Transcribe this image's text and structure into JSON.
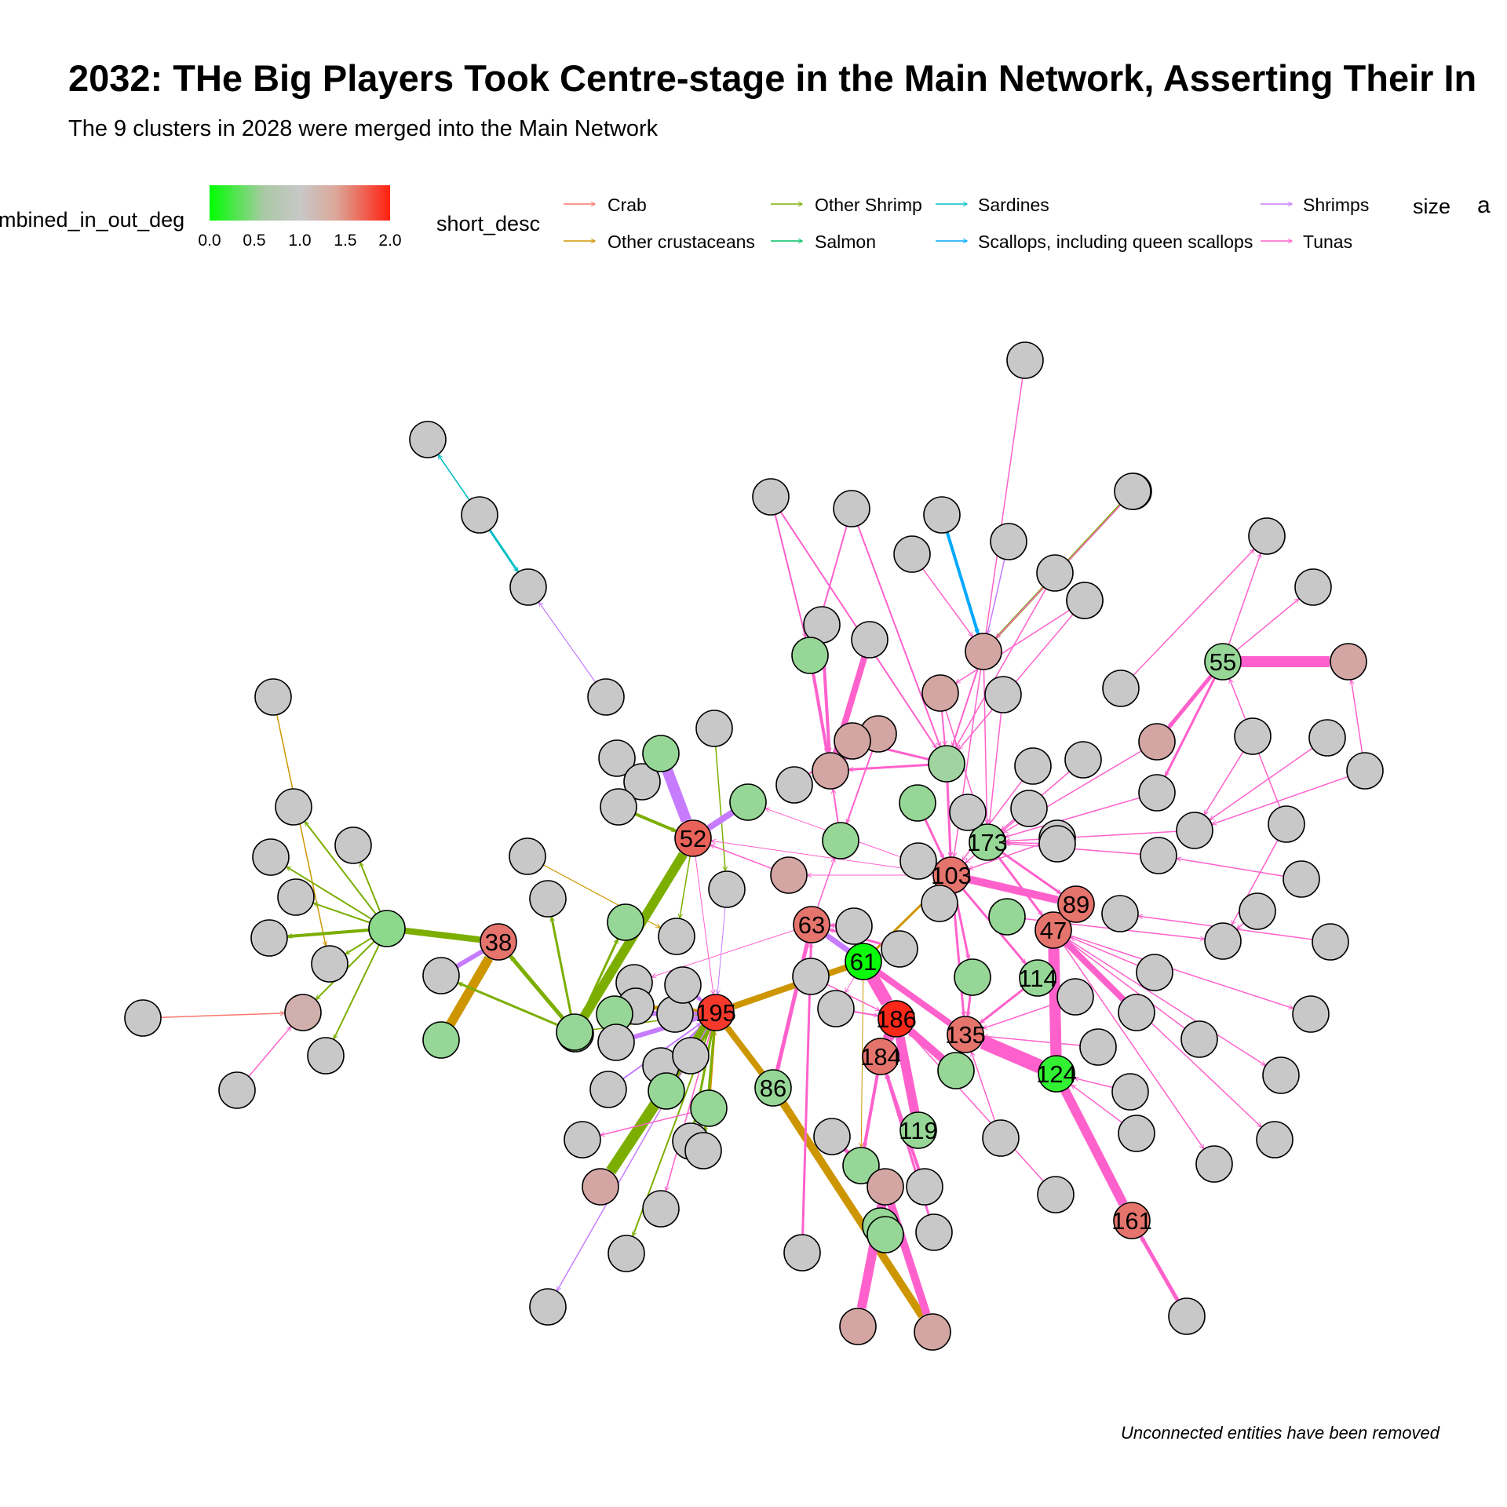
{
  "header": {
    "title": "2032: THe Big Players Took Centre-stage in the Main Network, Asserting Their In",
    "subtitle": "The 9 clusters in 2028 were merged into the Main Network"
  },
  "caption": "Unconnected entities have been removed",
  "legend": {
    "color_title": "mbined_in_out_deg",
    "color_ticks": [
      "0.0",
      "0.5",
      "1.0",
      "1.5",
      "2.0"
    ],
    "color_scale": {
      "low": "#00ff00",
      "mid": "#c8c8c8",
      "high": "#ff2010"
    },
    "edge_title": "short_desc",
    "edge_items": [
      {
        "label": "Crab",
        "color": "#F8766D"
      },
      {
        "label": "Other crustaceans",
        "color": "#CD9600"
      },
      {
        "label": "Other Shrimp",
        "color": "#7CAE00"
      },
      {
        "label": "Salmon",
        "color": "#00BE67"
      },
      {
        "label": "Sardines",
        "color": "#00BFC4"
      },
      {
        "label": "Scallops, including queen scallops",
        "color": "#00A9FF"
      },
      {
        "label": "Shrimps",
        "color": "#C77CFF"
      },
      {
        "label": "Tunas",
        "color": "#FF61CC"
      }
    ],
    "size_title": "size",
    "size_key": "a"
  },
  "labeled_nodes": [
    "52",
    "38",
    "63",
    "61",
    "195",
    "86",
    "186",
    "184",
    "119",
    "135",
    "124",
    "161",
    "114",
    "47",
    "89",
    "103",
    "173",
    "55"
  ]
}
